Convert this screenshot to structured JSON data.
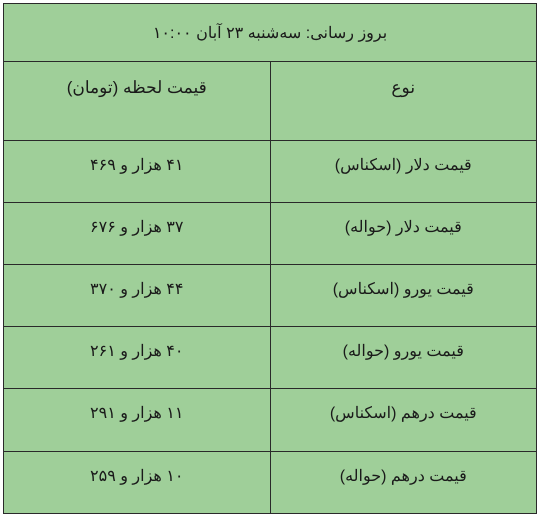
{
  "table": {
    "title": "بروز رسانی: سه‌شنبه ۲۳  آبان ۱۰:۰۰",
    "columns": {
      "type": "نوع",
      "price": "قیمت لحظه (تومان)"
    },
    "rows": [
      {
        "type": "قیمت دلار (اسکناس)",
        "price": "۴۱  هزار و ۴۶۹"
      },
      {
        "type": "قیمت دلار (حواله)",
        "price": "۳۷  هزار و ۶۷۶"
      },
      {
        "type": "قیمت یورو (اسکناس)",
        "price": "۴۴  هزار و ۳۷۰"
      },
      {
        "type": "قیمت یورو (حواله)",
        "price": "۴۰  هزار و ۲۶۱"
      },
      {
        "type": "قیمت درهم (اسکناس)",
        "price": "۱۱ هزار و ۲۹۱"
      },
      {
        "type": "قیمت درهم (حواله)",
        "price": "۱۰ هزار و ۲۵۹"
      }
    ],
    "background_color": "#9fcf99",
    "border_color": "#2a2a2a",
    "text_color": "#1a1a1a",
    "title_fontsize": 16,
    "header_fontsize": 17,
    "cell_fontsize": 16
  }
}
